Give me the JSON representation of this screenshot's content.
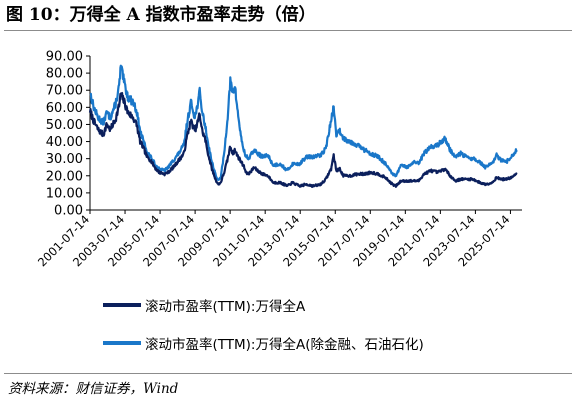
{
  "title": "图 10：万得全 A 指数市盈率走势（倍）",
  "source": "资料来源：财信证券，Wind",
  "chart_data": {
    "type": "line",
    "ylim": [
      0,
      90
    ],
    "yticks": [
      "0.00",
      "10.00",
      "20.00",
      "30.00",
      "40.00",
      "50.00",
      "60.00",
      "70.00",
      "80.00",
      "90.00"
    ],
    "xlim": [
      2001.54,
      2026.2
    ],
    "xticks": [
      {
        "value": 2001.54,
        "label": "2001-07-14"
      },
      {
        "value": 2003.54,
        "label": "2003-07-14"
      },
      {
        "value": 2005.54,
        "label": "2005-07-14"
      },
      {
        "value": 2007.54,
        "label": "2007-07-14"
      },
      {
        "value": 2009.54,
        "label": "2009-07-14"
      },
      {
        "value": 2011.54,
        "label": "2011-07-14"
      },
      {
        "value": 2013.54,
        "label": "2013-07-14"
      },
      {
        "value": 2015.54,
        "label": "2015-07-14"
      },
      {
        "value": 2017.54,
        "label": "2017-07-14"
      },
      {
        "value": 2019.54,
        "label": "2019-07-14"
      },
      {
        "value": 2021.54,
        "label": "2021-07-14"
      },
      {
        "value": 2023.54,
        "label": "2023-07-14"
      },
      {
        "value": 2025.54,
        "label": "2025-07-14"
      }
    ],
    "series": [
      {
        "name": "滚动市盈率(TTM):万得全A",
        "color": "#0b1f5c",
        "points": [
          [
            2001.54,
            58
          ],
          [
            2001.75,
            52
          ],
          [
            2002.0,
            47
          ],
          [
            2002.3,
            44
          ],
          [
            2002.5,
            50
          ],
          [
            2002.7,
            47
          ],
          [
            2003.0,
            53
          ],
          [
            2003.2,
            61
          ],
          [
            2003.3,
            68
          ],
          [
            2003.5,
            63
          ],
          [
            2003.7,
            57
          ],
          [
            2004.0,
            54
          ],
          [
            2004.2,
            50
          ],
          [
            2004.4,
            40
          ],
          [
            2004.6,
            36
          ],
          [
            2004.8,
            31
          ],
          [
            2005.0,
            29
          ],
          [
            2005.3,
            24
          ],
          [
            2005.5,
            22
          ],
          [
            2005.8,
            21
          ],
          [
            2006.0,
            22
          ],
          [
            2006.3,
            25
          ],
          [
            2006.6,
            29
          ],
          [
            2006.9,
            33
          ],
          [
            2007.1,
            44
          ],
          [
            2007.3,
            52
          ],
          [
            2007.5,
            47
          ],
          [
            2007.6,
            48
          ],
          [
            2007.8,
            56
          ],
          [
            2007.95,
            46
          ],
          [
            2008.1,
            42
          ],
          [
            2008.3,
            32
          ],
          [
            2008.5,
            24
          ],
          [
            2008.7,
            18
          ],
          [
            2008.85,
            15
          ],
          [
            2009.0,
            16
          ],
          [
            2009.2,
            22
          ],
          [
            2009.4,
            30
          ],
          [
            2009.55,
            37
          ],
          [
            2009.7,
            33
          ],
          [
            2009.8,
            35
          ],
          [
            2010.0,
            31
          ],
          [
            2010.3,
            26
          ],
          [
            2010.5,
            21
          ],
          [
            2010.7,
            22
          ],
          [
            2010.9,
            25
          ],
          [
            2011.1,
            23
          ],
          [
            2011.4,
            21
          ],
          [
            2011.7,
            20
          ],
          [
            2012.0,
            16
          ],
          [
            2012.4,
            16
          ],
          [
            2012.8,
            14
          ],
          [
            2013.1,
            16
          ],
          [
            2013.5,
            14
          ],
          [
            2013.9,
            15
          ],
          [
            2014.3,
            14
          ],
          [
            2014.7,
            15
          ],
          [
            2015.0,
            18
          ],
          [
            2015.3,
            24
          ],
          [
            2015.45,
            32
          ],
          [
            2015.6,
            23
          ],
          [
            2015.8,
            24
          ],
          [
            2016.0,
            20
          ],
          [
            2016.4,
            20
          ],
          [
            2016.8,
            21
          ],
          [
            2017.2,
            21
          ],
          [
            2017.6,
            22
          ],
          [
            2018.0,
            21
          ],
          [
            2018.4,
            19
          ],
          [
            2018.8,
            15
          ],
          [
            2019.0,
            14
          ],
          [
            2019.3,
            17
          ],
          [
            2019.7,
            17
          ],
          [
            2020.0,
            17
          ],
          [
            2020.3,
            17
          ],
          [
            2020.6,
            21
          ],
          [
            2021.0,
            23
          ],
          [
            2021.4,
            22
          ],
          [
            2021.8,
            24
          ],
          [
            2022.1,
            20
          ],
          [
            2022.4,
            17
          ],
          [
            2022.7,
            18
          ],
          [
            2023.0,
            18
          ],
          [
            2023.4,
            18
          ],
          [
            2023.8,
            16
          ],
          [
            2024.1,
            15
          ],
          [
            2024.5,
            16
          ],
          [
            2024.75,
            19
          ],
          [
            2025.0,
            18
          ],
          [
            2025.3,
            18
          ],
          [
            2025.6,
            19
          ],
          [
            2025.9,
            21
          ]
        ]
      },
      {
        "name": "滚动市盈率(TTM):万得全A(除金融、石油石化)",
        "color": "#1a77c9",
        "points": [
          [
            2001.54,
            69
          ],
          [
            2001.75,
            60
          ],
          [
            2002.0,
            54
          ],
          [
            2002.3,
            51
          ],
          [
            2002.5,
            57
          ],
          [
            2002.7,
            54
          ],
          [
            2003.0,
            62
          ],
          [
            2003.2,
            72
          ],
          [
            2003.3,
            84
          ],
          [
            2003.5,
            74
          ],
          [
            2003.7,
            66
          ],
          [
            2004.0,
            63
          ],
          [
            2004.2,
            58
          ],
          [
            2004.4,
            46
          ],
          [
            2004.6,
            40
          ],
          [
            2004.8,
            34
          ],
          [
            2005.0,
            31
          ],
          [
            2005.3,
            26
          ],
          [
            2005.5,
            24
          ],
          [
            2005.8,
            23
          ],
          [
            2006.0,
            25
          ],
          [
            2006.3,
            29
          ],
          [
            2006.6,
            33
          ],
          [
            2006.9,
            38
          ],
          [
            2007.1,
            52
          ],
          [
            2007.3,
            63
          ],
          [
            2007.5,
            55
          ],
          [
            2007.6,
            57
          ],
          [
            2007.8,
            69
          ],
          [
            2007.95,
            57
          ],
          [
            2008.1,
            50
          ],
          [
            2008.3,
            38
          ],
          [
            2008.5,
            28
          ],
          [
            2008.7,
            21
          ],
          [
            2008.85,
            17
          ],
          [
            2009.0,
            19
          ],
          [
            2009.2,
            33
          ],
          [
            2009.4,
            55
          ],
          [
            2009.55,
            75
          ],
          [
            2009.7,
            68
          ],
          [
            2009.8,
            73
          ],
          [
            2010.0,
            55
          ],
          [
            2010.2,
            40
          ],
          [
            2010.4,
            32
          ],
          [
            2010.6,
            30
          ],
          [
            2010.9,
            35
          ],
          [
            2011.1,
            33
          ],
          [
            2011.4,
            31
          ],
          [
            2011.7,
            32
          ],
          [
            2012.0,
            26
          ],
          [
            2012.4,
            27
          ],
          [
            2012.8,
            23
          ],
          [
            2013.1,
            27
          ],
          [
            2013.5,
            27
          ],
          [
            2013.9,
            31
          ],
          [
            2014.3,
            31
          ],
          [
            2014.7,
            32
          ],
          [
            2015.0,
            36
          ],
          [
            2015.3,
            52
          ],
          [
            2015.45,
            60
          ],
          [
            2015.6,
            44
          ],
          [
            2015.8,
            46
          ],
          [
            2016.0,
            42
          ],
          [
            2016.4,
            40
          ],
          [
            2016.8,
            38
          ],
          [
            2017.2,
            35
          ],
          [
            2017.6,
            33
          ],
          [
            2018.0,
            31
          ],
          [
            2018.4,
            27
          ],
          [
            2018.8,
            21
          ],
          [
            2019.0,
            20
          ],
          [
            2019.3,
            26
          ],
          [
            2019.7,
            25
          ],
          [
            2020.0,
            28
          ],
          [
            2020.3,
            27
          ],
          [
            2020.6,
            33
          ],
          [
            2021.0,
            37
          ],
          [
            2021.4,
            38
          ],
          [
            2021.8,
            42
          ],
          [
            2022.1,
            35
          ],
          [
            2022.4,
            31
          ],
          [
            2022.7,
            33
          ],
          [
            2023.0,
            31
          ],
          [
            2023.4,
            30
          ],
          [
            2023.8,
            28
          ],
          [
            2024.1,
            25
          ],
          [
            2024.5,
            27
          ],
          [
            2024.75,
            32
          ],
          [
            2025.0,
            29
          ],
          [
            2025.3,
            28
          ],
          [
            2025.6,
            31
          ],
          [
            2025.9,
            35
          ]
        ]
      }
    ]
  }
}
